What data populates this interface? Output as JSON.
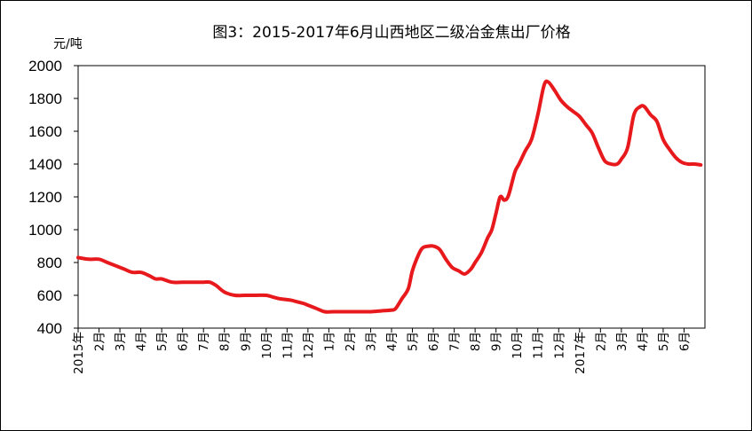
{
  "chart_data": {
    "type": "line",
    "title": "图3：2015-2017年6月山西地区二级冶金焦出厂价格",
    "ylabel": "元/吨",
    "xlabel": "",
    "ylim": [
      400,
      2000
    ],
    "yticks": [
      400,
      600,
      800,
      1000,
      1200,
      1400,
      1600,
      1800,
      2000
    ],
    "xlim": [
      0,
      30
    ],
    "xticks": [
      {
        "x": 0,
        "label": "2015年"
      },
      {
        "x": 1,
        "label": "2月"
      },
      {
        "x": 2,
        "label": "3月"
      },
      {
        "x": 3,
        "label": "4月"
      },
      {
        "x": 4,
        "label": "5月"
      },
      {
        "x": 5,
        "label": "6月"
      },
      {
        "x": 6,
        "label": "7月"
      },
      {
        "x": 7,
        "label": "8月"
      },
      {
        "x": 8,
        "label": "9月"
      },
      {
        "x": 9,
        "label": "10月"
      },
      {
        "x": 10,
        "label": "11月"
      },
      {
        "x": 11,
        "label": "12月"
      },
      {
        "x": 12,
        "label": "1月"
      },
      {
        "x": 13,
        "label": "2月"
      },
      {
        "x": 14,
        "label": "3月"
      },
      {
        "x": 15,
        "label": "4月"
      },
      {
        "x": 16,
        "label": "5月"
      },
      {
        "x": 17,
        "label": "6月"
      },
      {
        "x": 18,
        "label": "7月"
      },
      {
        "x": 19,
        "label": "8月"
      },
      {
        "x": 20,
        "label": "9月"
      },
      {
        "x": 21,
        "label": "10月"
      },
      {
        "x": 22,
        "label": "11月"
      },
      {
        "x": 23,
        "label": "12月"
      },
      {
        "x": 24,
        "label": "2017年"
      },
      {
        "x": 25,
        "label": "2月"
      },
      {
        "x": 26,
        "label": "3月"
      },
      {
        "x": 27,
        "label": "4月"
      },
      {
        "x": 28,
        "label": "5月"
      },
      {
        "x": 29,
        "label": "6月"
      }
    ],
    "grid": false,
    "legend": "none",
    "line_color": "#e8191c",
    "series": [
      {
        "x": [
          0,
          0.5,
          1.0,
          1.4,
          1.8,
          2.2,
          2.6,
          3.0,
          3.4,
          3.7,
          4.0,
          4.5,
          5.0,
          5.5,
          6.0,
          6.3,
          6.6,
          7.0,
          7.5,
          8.0,
          8.5,
          9.0,
          9.3,
          9.6,
          9.9,
          10.2,
          10.5,
          10.8,
          11.0,
          11.4,
          11.8,
          12.2,
          12.6,
          13.0,
          13.5,
          14.0,
          14.5,
          15.0,
          15.2,
          15.5,
          15.8,
          16.0,
          16.3,
          16.5,
          16.8,
          17.0,
          17.3,
          17.6,
          17.9,
          18.2,
          18.5,
          18.8,
          19.0,
          19.3,
          19.6,
          19.8,
          20.0,
          20.2,
          20.4,
          20.6,
          20.9,
          21.1,
          21.4,
          21.7,
          22.0,
          22.3,
          22.5,
          22.8,
          23.1,
          23.4,
          23.7,
          24.0,
          24.3,
          24.6,
          24.9,
          25.2,
          25.5,
          25.8,
          26.0,
          26.3,
          26.6,
          26.9,
          27.1,
          27.4,
          27.7,
          28.0,
          28.3,
          28.6,
          28.9,
          29.2,
          29.5,
          29.8
        ],
        "values": [
          830,
          820,
          820,
          800,
          780,
          760,
          740,
          740,
          720,
          700,
          700,
          680,
          680,
          680,
          680,
          680,
          660,
          620,
          600,
          600,
          600,
          600,
          590,
          580,
          575,
          570,
          560,
          550,
          540,
          520,
          500,
          500,
          500,
          500,
          500,
          500,
          505,
          510,
          520,
          580,
          640,
          750,
          850,
          890,
          900,
          900,
          880,
          820,
          770,
          750,
          730,
          760,
          800,
          860,
          950,
          1000,
          1100,
          1200,
          1180,
          1210,
          1350,
          1400,
          1480,
          1550,
          1700,
          1880,
          1900,
          1850,
          1790,
          1750,
          1720,
          1690,
          1640,
          1590,
          1500,
          1420,
          1400,
          1400,
          1430,
          1500,
          1700,
          1750,
          1750,
          1700,
          1660,
          1550,
          1490,
          1440,
          1410,
          1400,
          1400,
          1395
        ]
      }
    ]
  }
}
